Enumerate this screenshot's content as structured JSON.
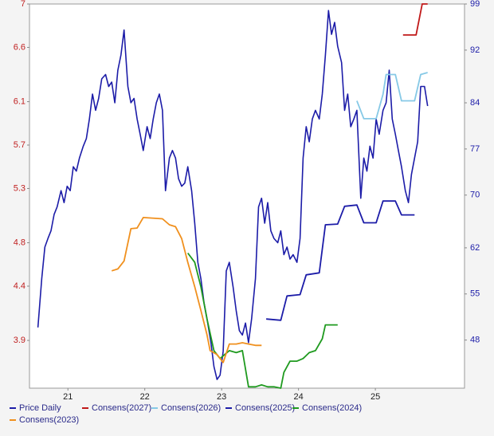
{
  "chart_data": {
    "type": "line",
    "xlim": [
      21,
      26.66
    ],
    "xticks": [
      {
        "value": 21.5,
        "label": "21"
      },
      {
        "value": 22.5,
        "label": "22"
      },
      {
        "value": 23.5,
        "label": "23"
      },
      {
        "value": 24.5,
        "label": "24"
      },
      {
        "value": 25.5,
        "label": "25"
      }
    ],
    "ylim": [
      3.46,
      7.0
    ],
    "yticks": [
      7.0,
      6.6,
      6.1,
      5.7,
      5.3,
      4.8,
      4.4,
      3.9
    ],
    "y2lim": [
      40.7,
      99
    ],
    "y2ticks": [
      99,
      92,
      84,
      77,
      70,
      62,
      55,
      48
    ],
    "grid": false,
    "legend": "bottom",
    "series": [
      {
        "name": "Price Daily",
        "color": "#1c1ca8",
        "x": [
          21.11,
          21.16,
          21.2,
          21.24,
          21.28,
          21.32,
          21.36,
          21.41,
          21.45,
          21.49,
          21.53,
          21.57,
          21.61,
          21.65,
          21.7,
          21.74,
          21.78,
          21.82,
          21.86,
          21.9,
          21.94,
          21.99,
          22.03,
          22.07,
          22.11,
          22.15,
          22.19,
          22.23,
          22.28,
          22.32,
          22.36,
          22.4,
          22.44,
          22.48,
          22.53,
          22.57,
          22.61,
          22.65,
          22.69,
          22.73,
          22.77,
          22.82,
          22.86,
          22.9,
          22.94,
          22.98,
          23.02,
          23.06,
          23.11,
          23.15,
          23.19,
          23.23,
          23.27,
          23.31,
          23.36,
          23.4,
          23.44,
          23.48,
          23.52,
          23.56,
          23.6,
          23.65,
          23.69,
          23.73,
          23.77,
          23.81,
          23.85,
          23.89,
          23.94,
          23.98,
          24.02,
          24.06,
          24.1,
          24.14,
          24.18,
          24.23,
          24.27,
          24.31,
          24.35,
          24.39,
          24.43,
          24.48,
          24.52,
          24.56,
          24.6,
          24.64,
          24.68,
          24.72,
          24.77,
          24.81,
          24.85,
          24.89,
          24.93,
          24.97,
          25.01,
          25.06,
          25.1,
          25.14,
          25.18,
          25.22,
          25.26,
          25.31,
          25.35,
          25.39,
          25.43,
          25.47,
          25.51,
          25.55,
          25.6,
          25.64,
          25.68,
          25.72,
          25.76,
          25.8,
          25.84,
          25.89,
          25.93,
          25.97,
          26.01,
          26.05,
          26.09,
          26.14,
          26.18
        ],
        "values": [
          4.02,
          4.47,
          4.76,
          4.84,
          4.91,
          5.06,
          5.13,
          5.28,
          5.17,
          5.32,
          5.28,
          5.5,
          5.46,
          5.58,
          5.69,
          5.76,
          5.94,
          6.17,
          6.02,
          6.13,
          6.31,
          6.35,
          6.24,
          6.28,
          6.09,
          6.39,
          6.53,
          6.76,
          6.24,
          6.09,
          6.13,
          5.94,
          5.8,
          5.65,
          5.87,
          5.76,
          5.94,
          6.09,
          6.17,
          6.02,
          5.28,
          5.58,
          5.65,
          5.58,
          5.39,
          5.32,
          5.35,
          5.5,
          5.28,
          4.98,
          4.62,
          4.47,
          4.25,
          4.1,
          3.88,
          3.66,
          3.54,
          3.58,
          3.8,
          4.54,
          4.62,
          4.39,
          4.17,
          3.99,
          3.95,
          4.06,
          3.88,
          4.1,
          4.47,
          5.13,
          5.21,
          4.98,
          5.17,
          4.91,
          4.84,
          4.8,
          4.91,
          4.69,
          4.76,
          4.65,
          4.69,
          4.62,
          4.84,
          5.58,
          5.87,
          5.73,
          5.94,
          6.02,
          5.94,
          6.17,
          6.53,
          6.94,
          6.72,
          6.83,
          6.61,
          6.46,
          6.02,
          6.17,
          5.87,
          5.94,
          6.02,
          5.21,
          5.58,
          5.46,
          5.69,
          5.58,
          5.94,
          5.8,
          6.02,
          6.09,
          6.39,
          5.94,
          5.8,
          5.65,
          5.5,
          5.28,
          5.17,
          5.43,
          5.58,
          5.73,
          6.24,
          6.24,
          6.06
        ]
      },
      {
        "name": "Consens(2027)",
        "color": "#c01818",
        "axis": "y2",
        "x": [
          25.86,
          26.03,
          26.11,
          26.18
        ],
        "values": [
          94.3,
          94.3,
          99.0,
          99.0
        ]
      },
      {
        "name": "Consens(2026)",
        "color": "#86c9e6",
        "axis": "y2",
        "x": [
          25.26,
          25.35,
          25.51,
          25.6,
          25.64,
          25.76,
          25.84,
          26.01,
          26.09,
          26.18
        ],
        "values": [
          84.3,
          81.6,
          81.6,
          85.3,
          88.3,
          88.3,
          84.3,
          84.3,
          88.3,
          88.6
        ]
      },
      {
        "name": "Consens(2025)",
        "color": "#1c1ca8",
        "axis": "y2",
        "x": [
          24.08,
          24.27,
          24.35,
          24.52,
          24.6,
          24.77,
          24.85,
          25.01,
          25.1,
          25.26,
          25.35,
          25.51,
          25.6,
          25.76,
          25.84,
          26.01
        ],
        "values": [
          51.2,
          51.0,
          54.7,
          54.9,
          57.9,
          58.2,
          65.5,
          65.6,
          68.3,
          68.5,
          65.8,
          65.8,
          69.1,
          69.1,
          67.0,
          67.0
        ]
      },
      {
        "name": "Consens(2024)",
        "color": "#1f9a1f",
        "axis": "y2",
        "x": [
          23.06,
          23.15,
          23.23,
          23.31,
          23.4,
          23.48,
          23.54,
          23.6,
          23.69,
          23.77,
          23.85,
          23.94,
          24.02,
          24.1,
          24.18,
          24.27,
          24.31,
          24.39,
          24.48,
          24.56,
          24.64,
          24.72,
          24.81,
          24.85,
          25.01
        ],
        "values": [
          61.2,
          59.8,
          56.1,
          51.2,
          46.4,
          45.2,
          45.8,
          46.4,
          46.1,
          46.4,
          40.9,
          40.9,
          41.2,
          40.9,
          40.9,
          40.7,
          43.1,
          44.8,
          44.8,
          45.2,
          46.1,
          46.4,
          48.2,
          50.3,
          50.3
        ]
      },
      {
        "name": "Consens(2023)",
        "color": "#f0901e",
        "axis": "y2",
        "x": [
          22.07,
          22.15,
          22.23,
          22.32,
          22.4,
          22.48,
          22.73,
          22.82,
          22.9,
          22.98,
          23.06,
          23.15,
          23.23,
          23.31,
          23.35,
          23.44,
          23.52,
          23.6,
          23.69,
          23.77,
          23.85,
          23.94,
          24.02
        ],
        "values": [
          58.5,
          58.8,
          60.0,
          64.9,
          65.0,
          66.6,
          66.4,
          65.5,
          65.2,
          63.4,
          59.8,
          56.1,
          52.5,
          48.8,
          46.4,
          45.8,
          44.6,
          47.4,
          47.4,
          47.6,
          47.4,
          47.2,
          47.2
        ]
      }
    ]
  }
}
